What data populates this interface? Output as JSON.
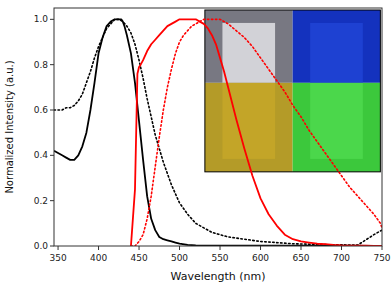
{
  "chart_data": {
    "type": "line",
    "xlabel": "Wavelength (nm)",
    "ylabel": "Normalized Intensity (a.u.)",
    "xlim": [
      345,
      750
    ],
    "ylim": [
      0.0,
      1.05
    ],
    "xticks": [
      350,
      400,
      450,
      500,
      550,
      600,
      650,
      700,
      750
    ],
    "yticks": [
      {
        "value": 0.0,
        "label": "0.0"
      },
      {
        "value": 0.2,
        "label": "0.2"
      },
      {
        "value": 0.4,
        "label": "0.4"
      },
      {
        "value": 0.6,
        "label": "0.6"
      },
      {
        "value": 0.8,
        "label": "0.8"
      },
      {
        "value": 1.0,
        "label": "1.0"
      }
    ],
    "grid": false,
    "series": [
      {
        "color": "black",
        "line_style": "solid",
        "x": [
          345,
          350,
          355,
          360,
          365,
          370,
          375,
          380,
          385,
          390,
          395,
          400,
          405,
          410,
          415,
          420,
          425,
          428,
          430,
          432,
          435,
          440,
          445,
          450,
          455,
          460,
          465,
          470,
          475,
          480,
          485,
          490,
          495,
          500,
          510,
          520,
          530,
          540,
          550,
          600,
          650,
          700,
          740,
          750
        ],
        "values": [
          0.42,
          0.41,
          0.4,
          0.39,
          0.38,
          0.38,
          0.4,
          0.44,
          0.5,
          0.6,
          0.72,
          0.85,
          0.92,
          0.97,
          0.99,
          1.0,
          1.0,
          1.0,
          0.99,
          0.97,
          0.93,
          0.85,
          0.72,
          0.55,
          0.38,
          0.22,
          0.12,
          0.07,
          0.04,
          0.03,
          0.025,
          0.02,
          0.015,
          0.01,
          0.005,
          0.003,
          0.002,
          0.002,
          0.001,
          0.001,
          0.001,
          0.002,
          0.0,
          0.0
        ]
      },
      {
        "color": "black",
        "line_style": "dotted",
        "x": [
          345,
          350,
          355,
          360,
          365,
          370,
          375,
          380,
          385,
          390,
          395,
          400,
          405,
          410,
          415,
          420,
          425,
          430,
          435,
          440,
          445,
          450,
          455,
          460,
          465,
          470,
          475,
          480,
          485,
          490,
          495,
          500,
          510,
          520,
          530,
          540,
          550,
          560,
          570,
          580,
          590,
          600,
          620,
          640,
          660,
          680,
          700,
          720,
          740,
          750
        ],
        "values": [
          0.6,
          0.6,
          0.6,
          0.61,
          0.61,
          0.62,
          0.64,
          0.67,
          0.72,
          0.77,
          0.83,
          0.88,
          0.92,
          0.96,
          0.98,
          1.0,
          1.0,
          0.99,
          0.97,
          0.94,
          0.89,
          0.82,
          0.74,
          0.65,
          0.57,
          0.49,
          0.43,
          0.37,
          0.32,
          0.27,
          0.23,
          0.19,
          0.14,
          0.1,
          0.08,
          0.06,
          0.05,
          0.04,
          0.035,
          0.03,
          0.025,
          0.02,
          0.015,
          0.01,
          0.008,
          0.006,
          0.005,
          0.004,
          0.05,
          0.07
        ]
      },
      {
        "color": "red",
        "line_style": "solid",
        "x": [
          440,
          445,
          448,
          450,
          452,
          455,
          460,
          465,
          470,
          475,
          480,
          485,
          490,
          495,
          500,
          505,
          510,
          515,
          520,
          525,
          530,
          535,
          540,
          545,
          550,
          555,
          560,
          570,
          580,
          590,
          600,
          610,
          620,
          630,
          640,
          650,
          660,
          670,
          680,
          690,
          700,
          710,
          720,
          730,
          740,
          748,
          750
        ],
        "values": [
          0.0,
          0.25,
          0.76,
          0.79,
          0.8,
          0.82,
          0.86,
          0.89,
          0.91,
          0.93,
          0.95,
          0.97,
          0.98,
          0.99,
          1.0,
          1.0,
          1.0,
          1.0,
          1.0,
          0.99,
          0.98,
          0.96,
          0.93,
          0.89,
          0.83,
          0.77,
          0.7,
          0.56,
          0.43,
          0.31,
          0.21,
          0.14,
          0.09,
          0.05,
          0.03,
          0.02,
          0.015,
          0.01,
          0.008,
          0.005,
          0.003,
          0.002,
          0.002,
          0.001,
          0.0,
          0.0,
          0.0
        ]
      },
      {
        "color": "red",
        "line_style": "dotted",
        "x": [
          440,
          445,
          450,
          455,
          460,
          465,
          470,
          475,
          480,
          485,
          490,
          495,
          500,
          505,
          510,
          515,
          520,
          525,
          530,
          535,
          540,
          545,
          550,
          555,
          560,
          570,
          580,
          590,
          600,
          610,
          620,
          630,
          640,
          650,
          660,
          670,
          680,
          690,
          700,
          710,
          720,
          730,
          740,
          748,
          750
        ],
        "values": [
          0.0,
          0.0,
          0.02,
          0.05,
          0.12,
          0.22,
          0.35,
          0.48,
          0.6,
          0.7,
          0.78,
          0.85,
          0.9,
          0.93,
          0.95,
          0.97,
          0.98,
          0.99,
          1.0,
          1.0,
          1.0,
          1.0,
          1.0,
          0.99,
          0.98,
          0.95,
          0.92,
          0.88,
          0.83,
          0.78,
          0.73,
          0.68,
          0.62,
          0.57,
          0.51,
          0.46,
          0.41,
          0.36,
          0.31,
          0.26,
          0.22,
          0.18,
          0.14,
          0.1,
          0.08
        ]
      }
    ]
  }
}
